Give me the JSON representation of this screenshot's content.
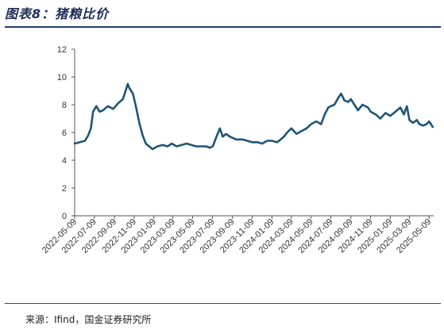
{
  "title": "图表8：猪粮比价",
  "source": "来源：Ifind，国金证券研究所",
  "chart_data": {
    "type": "line",
    "title": "",
    "xlabel": "",
    "ylabel": "",
    "ylim": [
      0,
      12
    ],
    "yticks": [
      0,
      2,
      4,
      6,
      8,
      10,
      12
    ],
    "xticks": [
      "2022-05-09",
      "2022-07-09",
      "2022-09-09",
      "2022-11-09",
      "2023-01-09",
      "2023-03-09",
      "2023-05-09",
      "2023-07-09",
      "2023-09-09",
      "2023-11-09",
      "2024-01-09",
      "2024-03-09",
      "2024-05-09",
      "2024-07-09",
      "2024-09-09",
      "2024-11-09",
      "2025-01-09",
      "2025-03-09",
      "2025-05-09"
    ],
    "xlim": [
      "2022-05-09",
      "2025-05-23"
    ],
    "grid": false,
    "legend": "none",
    "line_color": "#1f5577",
    "series": [
      {
        "x": [
          "2022-05-09",
          "2022-05-25",
          "2022-06-10",
          "2022-06-20",
          "2022-06-28",
          "2022-07-05",
          "2022-07-15",
          "2022-07-25",
          "2022-08-05",
          "2022-08-20",
          "2022-09-05",
          "2022-09-20",
          "2022-10-05",
          "2022-10-15",
          "2022-10-20",
          "2022-10-25",
          "2022-11-05",
          "2022-11-15",
          "2022-11-25",
          "2022-12-05",
          "2022-12-15",
          "2022-12-25",
          "2023-01-05",
          "2023-01-20",
          "2023-02-05",
          "2023-02-20",
          "2023-03-05",
          "2023-03-20",
          "2023-04-05",
          "2023-04-20",
          "2023-05-05",
          "2023-05-20",
          "2023-06-05",
          "2023-06-20",
          "2023-07-01",
          "2023-07-10",
          "2023-07-20",
          "2023-08-01",
          "2023-08-10",
          "2023-08-20",
          "2023-09-01",
          "2023-09-20",
          "2023-10-10",
          "2023-10-25",
          "2023-11-09",
          "2023-11-25",
          "2023-12-10",
          "2023-12-25",
          "2024-01-09",
          "2024-01-25",
          "2024-02-05",
          "2024-02-15",
          "2024-02-25",
          "2024-03-09",
          "2024-03-25",
          "2024-04-09",
          "2024-04-25",
          "2024-05-09",
          "2024-05-25",
          "2024-06-09",
          "2024-06-20",
          "2024-07-01",
          "2024-07-09",
          "2024-07-20",
          "2024-08-01",
          "2024-08-10",
          "2024-08-20",
          "2024-09-01",
          "2024-09-09",
          "2024-09-20",
          "2024-10-01",
          "2024-10-15",
          "2024-11-01",
          "2024-11-09",
          "2024-11-25",
          "2024-12-09",
          "2024-12-25",
          "2025-01-09",
          "2025-01-25",
          "2025-02-09",
          "2025-02-20",
          "2025-03-01",
          "2025-03-09",
          "2025-03-20",
          "2025-04-01",
          "2025-04-09",
          "2025-04-20",
          "2025-05-01",
          "2025-05-09",
          "2025-05-20"
        ],
        "y": [
          5.2,
          5.3,
          5.4,
          5.8,
          6.3,
          7.5,
          7.9,
          7.5,
          7.6,
          7.9,
          7.7,
          8.1,
          8.4,
          9.1,
          9.5,
          9.2,
          8.8,
          7.8,
          6.7,
          5.8,
          5.2,
          5.0,
          4.8,
          5.0,
          5.1,
          5.0,
          5.2,
          5.0,
          5.1,
          5.2,
          5.1,
          5.0,
          5.0,
          5.0,
          4.9,
          5.0,
          5.6,
          6.3,
          5.7,
          5.9,
          5.7,
          5.5,
          5.5,
          5.4,
          5.3,
          5.3,
          5.2,
          5.4,
          5.4,
          5.3,
          5.5,
          5.7,
          6.0,
          6.3,
          5.9,
          6.1,
          6.3,
          6.6,
          6.8,
          6.6,
          7.3,
          7.8,
          7.9,
          8.0,
          8.5,
          8.8,
          8.3,
          8.2,
          8.4,
          8.0,
          7.6,
          8.0,
          7.8,
          7.5,
          7.3,
          7.0,
          7.4,
          7.2,
          7.5,
          7.8,
          7.3,
          7.9,
          6.9,
          6.7,
          6.9,
          6.6,
          6.5,
          6.6,
          6.8,
          6.4
        ]
      }
    ]
  }
}
